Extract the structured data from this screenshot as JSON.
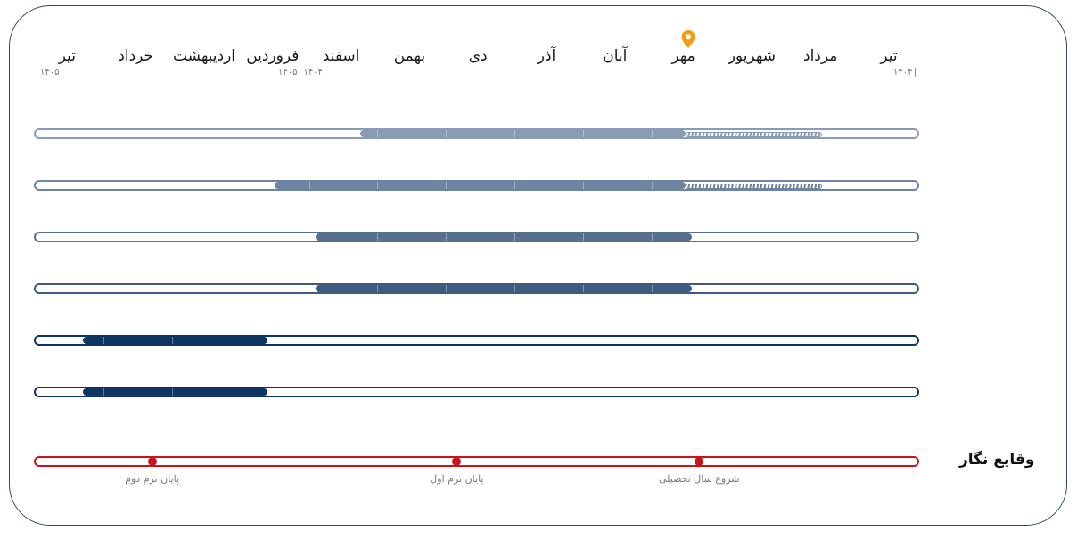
{
  "timeline": {
    "months": [
      "تیر",
      "مرداد",
      "شهریور",
      "مهر",
      "آبان",
      "آذر",
      "دی",
      "بهمن",
      "اسفند",
      "فروردین",
      "اردیبهشت",
      "خرداد",
      "تیر"
    ],
    "year_start": "۱۴۰۴",
    "year_boundary_left": "۱۴۰۵",
    "year_boundary_right": "۱۴۰۴",
    "year_end": "۱۴۰۵",
    "current_month_marker": "location-pin-icon",
    "marker_color": "#f39c12"
  },
  "bars": [
    {
      "start_month": 3.0,
      "end_month": 7.75,
      "planned_start_month": 1.0,
      "color": "#8a9cb5",
      "border": "#8a9cb5"
    },
    {
      "start_month": 3.0,
      "end_month": 9.0,
      "planned_start_month": 1.0,
      "color": "#6e84a3",
      "border": "#6e84a3"
    },
    {
      "start_month": 2.9,
      "end_month": 8.4,
      "planned_start_month": null,
      "color": "#566f90",
      "border": "#566f90"
    },
    {
      "start_month": 2.9,
      "end_month": 8.4,
      "planned_start_month": null,
      "color": "#3e5a80",
      "border": "#3e5a80"
    },
    {
      "start_month": 9.1,
      "end_month": 11.8,
      "planned_start_month": null,
      "color": "#0f3563",
      "border": "#0f3563"
    },
    {
      "start_month": 9.1,
      "end_month": 11.8,
      "planned_start_month": null,
      "color": "#0f3563",
      "border": "#0f3563"
    }
  ],
  "events": {
    "title": "وقایع نگار",
    "color": "#c8161d",
    "items": [
      {
        "label": "شروع سال تحصیلی",
        "month": 2.77
      },
      {
        "label": "پایان ترم اول",
        "month": 6.31
      },
      {
        "label": "پایان ترم دوم",
        "month": 10.76
      }
    ]
  }
}
